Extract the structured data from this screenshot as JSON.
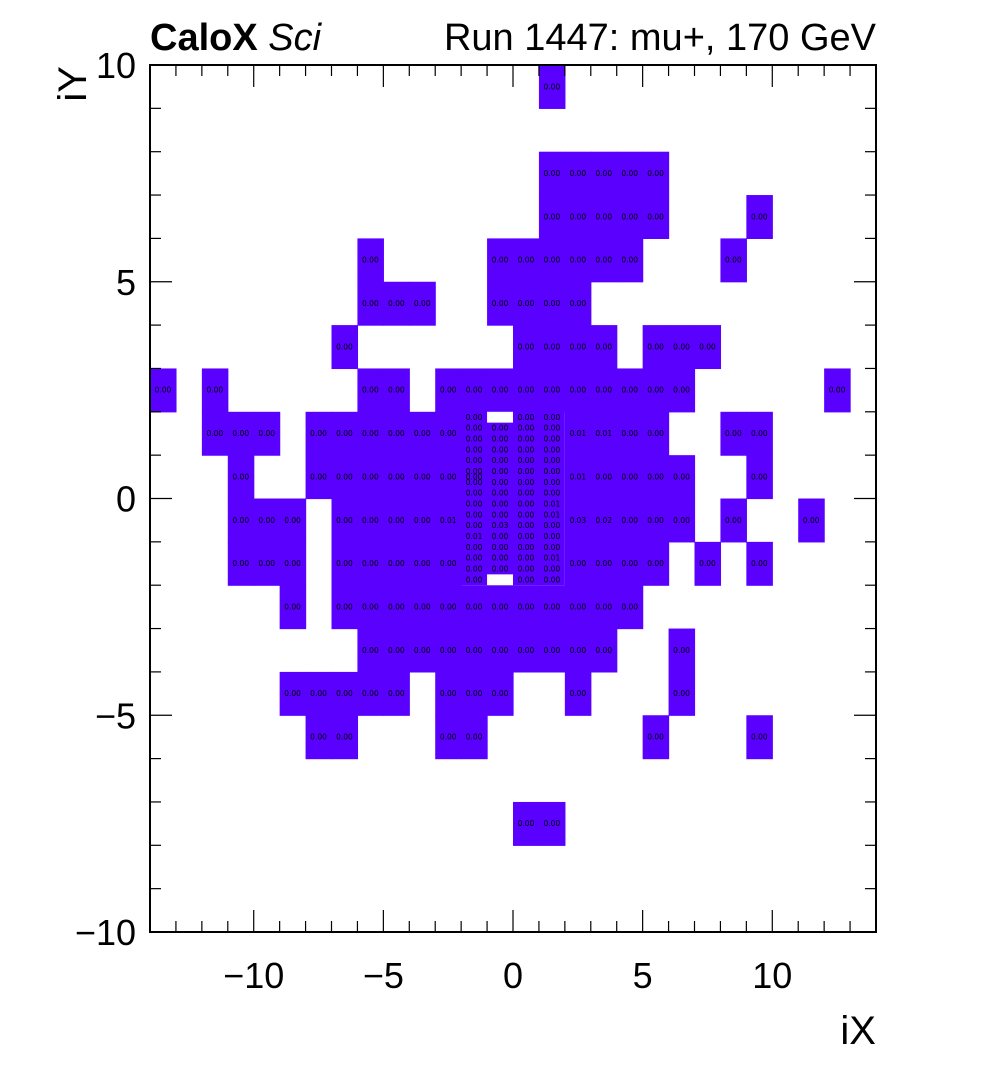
{
  "chart_data": {
    "type": "heatmap",
    "title_left_bold": "CaloX",
    "title_left_italic": "Sci",
    "title_right": "Run 1447: mu+, 170 GeV",
    "xlabel": "iX",
    "ylabel": "iY",
    "xlim": [
      -14,
      14
    ],
    "ylim": [
      -10,
      10
    ],
    "x_ticks": [
      -10,
      -5,
      0,
      5,
      10
    ],
    "x_tick_labels": [
      "−10",
      "−5",
      "0",
      "5",
      "10"
    ],
    "y_ticks": [
      -10,
      -5,
      0,
      5,
      10
    ],
    "y_tick_labels": [
      "−10",
      "−5",
      "0",
      "5",
      "10"
    ],
    "cell_color": "#5a00ff",
    "coarse_cells": [
      {
        "ix": 1,
        "iy": 9,
        "label": "0.00"
      },
      {
        "ix": 1,
        "iy": 7,
        "label": "0.00"
      },
      {
        "ix": 2,
        "iy": 7,
        "label": "0.00"
      },
      {
        "ix": 3,
        "iy": 7,
        "label": "0.00"
      },
      {
        "ix": 4,
        "iy": 7,
        "label": "0.00"
      },
      {
        "ix": 5,
        "iy": 7,
        "label": "0.00"
      },
      {
        "ix": 1,
        "iy": 6,
        "label": "0.00"
      },
      {
        "ix": 2,
        "iy": 6,
        "label": "0.00"
      },
      {
        "ix": 3,
        "iy": 6,
        "label": "0.00"
      },
      {
        "ix": 4,
        "iy": 6,
        "label": "0.00"
      },
      {
        "ix": 5,
        "iy": 6,
        "label": "0.00"
      },
      {
        "ix": 9,
        "iy": 6,
        "label": "0.00"
      },
      {
        "ix": -6,
        "iy": 5,
        "label": "0.00"
      },
      {
        "ix": -1,
        "iy": 5,
        "label": "0.00"
      },
      {
        "ix": 0,
        "iy": 5,
        "label": "0.00"
      },
      {
        "ix": 1,
        "iy": 5,
        "label": "0.00"
      },
      {
        "ix": 2,
        "iy": 5,
        "label": "0.00"
      },
      {
        "ix": 3,
        "iy": 5,
        "label": "0.00"
      },
      {
        "ix": 4,
        "iy": 5,
        "label": "0.00"
      },
      {
        "ix": 8,
        "iy": 5,
        "label": "0.00"
      },
      {
        "ix": -6,
        "iy": 4,
        "label": "0.00"
      },
      {
        "ix": -5,
        "iy": 4,
        "label": "0.00"
      },
      {
        "ix": -4,
        "iy": 4,
        "label": "0.00"
      },
      {
        "ix": -1,
        "iy": 4,
        "label": "0.00"
      },
      {
        "ix": 0,
        "iy": 4,
        "label": "0.00"
      },
      {
        "ix": 1,
        "iy": 4,
        "label": "0.00"
      },
      {
        "ix": 2,
        "iy": 4,
        "label": "0.00"
      },
      {
        "ix": -7,
        "iy": 3,
        "label": "0.00"
      },
      {
        "ix": 0,
        "iy": 3,
        "label": "0.00"
      },
      {
        "ix": 1,
        "iy": 3,
        "label": "0.00"
      },
      {
        "ix": 2,
        "iy": 3,
        "label": "0.00"
      },
      {
        "ix": 3,
        "iy": 3,
        "label": "0.00"
      },
      {
        "ix": 5,
        "iy": 3,
        "label": "0.00"
      },
      {
        "ix": 6,
        "iy": 3,
        "label": "0.00"
      },
      {
        "ix": 7,
        "iy": 3,
        "label": "0.00"
      },
      {
        "ix": -14,
        "iy": 2,
        "label": "0.00"
      },
      {
        "ix": -12,
        "iy": 2,
        "label": "0.00"
      },
      {
        "ix": -6,
        "iy": 2,
        "label": "0.00"
      },
      {
        "ix": -5,
        "iy": 2,
        "label": "0.00"
      },
      {
        "ix": -3,
        "iy": 2,
        "label": "0.00"
      },
      {
        "ix": -2,
        "iy": 2,
        "label": "0.00"
      },
      {
        "ix": -1,
        "iy": 2,
        "label": "0.00"
      },
      {
        "ix": 0,
        "iy": 2,
        "label": "0.00"
      },
      {
        "ix": 1,
        "iy": 2,
        "label": "0.00"
      },
      {
        "ix": 2,
        "iy": 2,
        "label": "0.00"
      },
      {
        "ix": 3,
        "iy": 2,
        "label": "0.00"
      },
      {
        "ix": 4,
        "iy": 2,
        "label": "0.00"
      },
      {
        "ix": 5,
        "iy": 2,
        "label": "0.00"
      },
      {
        "ix": 6,
        "iy": 2,
        "label": "0.00"
      },
      {
        "ix": 12,
        "iy": 2,
        "label": "0.00"
      },
      {
        "ix": -12,
        "iy": 1,
        "label": "0.00"
      },
      {
        "ix": -11,
        "iy": 1,
        "label": "0.00"
      },
      {
        "ix": -10,
        "iy": 1,
        "label": "0.00"
      },
      {
        "ix": -8,
        "iy": 1,
        "label": "0.00"
      },
      {
        "ix": -7,
        "iy": 1,
        "label": "0.00"
      },
      {
        "ix": -6,
        "iy": 1,
        "label": "0.00"
      },
      {
        "ix": -5,
        "iy": 1,
        "label": "0.00"
      },
      {
        "ix": -4,
        "iy": 1,
        "label": "0.00"
      },
      {
        "ix": -3,
        "iy": 1,
        "label": "0.00"
      },
      {
        "ix": 2,
        "iy": 1,
        "label": "0.01"
      },
      {
        "ix": 3,
        "iy": 1,
        "label": "0.01"
      },
      {
        "ix": 4,
        "iy": 1,
        "label": "0.00"
      },
      {
        "ix": 5,
        "iy": 1,
        "label": "0.00"
      },
      {
        "ix": 8,
        "iy": 1,
        "label": "0.00"
      },
      {
        "ix": 9,
        "iy": 1,
        "label": "0.00"
      },
      {
        "ix": -11,
        "iy": 0,
        "label": "0.00"
      },
      {
        "ix": -8,
        "iy": 0,
        "label": "0.00"
      },
      {
        "ix": -7,
        "iy": 0,
        "label": "0.00"
      },
      {
        "ix": -6,
        "iy": 0,
        "label": "0.00"
      },
      {
        "ix": -5,
        "iy": 0,
        "label": "0.00"
      },
      {
        "ix": -4,
        "iy": 0,
        "label": "0.00"
      },
      {
        "ix": -3,
        "iy": 0,
        "label": "0.00"
      },
      {
        "ix": -2,
        "iy": 0,
        "label": "0.00"
      },
      {
        "ix": 2,
        "iy": 0,
        "label": "0.01"
      },
      {
        "ix": 3,
        "iy": 0,
        "label": "0.00"
      },
      {
        "ix": 4,
        "iy": 0,
        "label": "0.00"
      },
      {
        "ix": 5,
        "iy": 0,
        "label": "0.00"
      },
      {
        "ix": 6,
        "iy": 0,
        "label": "0.00"
      },
      {
        "ix": 9,
        "iy": 0,
        "label": "0.00"
      },
      {
        "ix": -11,
        "iy": -1,
        "label": "0.00"
      },
      {
        "ix": -10,
        "iy": -1,
        "label": "0.00"
      },
      {
        "ix": -9,
        "iy": -1,
        "label": "0.00"
      },
      {
        "ix": -7,
        "iy": -1,
        "label": "0.00"
      },
      {
        "ix": -6,
        "iy": -1,
        "label": "0.00"
      },
      {
        "ix": -5,
        "iy": -1,
        "label": "0.00"
      },
      {
        "ix": -4,
        "iy": -1,
        "label": "0.00"
      },
      {
        "ix": -3,
        "iy": -1,
        "label": "0.01"
      },
      {
        "ix": 2,
        "iy": -1,
        "label": "0.03"
      },
      {
        "ix": 3,
        "iy": -1,
        "label": "0.02"
      },
      {
        "ix": 4,
        "iy": -1,
        "label": "0.00"
      },
      {
        "ix": 5,
        "iy": -1,
        "label": "0.00"
      },
      {
        "ix": 6,
        "iy": -1,
        "label": "0.00"
      },
      {
        "ix": 8,
        "iy": -1,
        "label": "0.00"
      },
      {
        "ix": 11,
        "iy": -1,
        "label": "0.00"
      },
      {
        "ix": -11,
        "iy": -2,
        "label": "0.00"
      },
      {
        "ix": -10,
        "iy": -2,
        "label": "0.00"
      },
      {
        "ix": -9,
        "iy": -2,
        "label": "0.00"
      },
      {
        "ix": -7,
        "iy": -2,
        "label": "0.00"
      },
      {
        "ix": -6,
        "iy": -2,
        "label": "0.00"
      },
      {
        "ix": -5,
        "iy": -2,
        "label": "0.00"
      },
      {
        "ix": -4,
        "iy": -2,
        "label": "0.00"
      },
      {
        "ix": -3,
        "iy": -2,
        "label": "0.00"
      },
      {
        "ix": 2,
        "iy": -2,
        "label": "0.00"
      },
      {
        "ix": 3,
        "iy": -2,
        "label": "0.00"
      },
      {
        "ix": 4,
        "iy": -2,
        "label": "0.00"
      },
      {
        "ix": 5,
        "iy": -2,
        "label": "0.00"
      },
      {
        "ix": 7,
        "iy": -2,
        "label": "0.00"
      },
      {
        "ix": 9,
        "iy": -2,
        "label": "0.00"
      },
      {
        "ix": -9,
        "iy": -3,
        "label": "0.00"
      },
      {
        "ix": -7,
        "iy": -3,
        "label": "0.00"
      },
      {
        "ix": -6,
        "iy": -3,
        "label": "0.00"
      },
      {
        "ix": -5,
        "iy": -3,
        "label": "0.00"
      },
      {
        "ix": -4,
        "iy": -3,
        "label": "0.00"
      },
      {
        "ix": -3,
        "iy": -3,
        "label": "0.00"
      },
      {
        "ix": -2,
        "iy": -3,
        "label": "0.00"
      },
      {
        "ix": -1,
        "iy": -3,
        "label": "0.00"
      },
      {
        "ix": 0,
        "iy": -3,
        "label": "0.00"
      },
      {
        "ix": 1,
        "iy": -3,
        "label": "0.00"
      },
      {
        "ix": 2,
        "iy": -3,
        "label": "0.00"
      },
      {
        "ix": 3,
        "iy": -3,
        "label": "0.00"
      },
      {
        "ix": 4,
        "iy": -3,
        "label": "0.00"
      },
      {
        "ix": -6,
        "iy": -4,
        "label": "0.00"
      },
      {
        "ix": -5,
        "iy": -4,
        "label": "0.00"
      },
      {
        "ix": -4,
        "iy": -4,
        "label": "0.00"
      },
      {
        "ix": -3,
        "iy": -4,
        "label": "0.00"
      },
      {
        "ix": -2,
        "iy": -4,
        "label": "0.00"
      },
      {
        "ix": -1,
        "iy": -4,
        "label": "0.00"
      },
      {
        "ix": 0,
        "iy": -4,
        "label": "0.00"
      },
      {
        "ix": 1,
        "iy": -4,
        "label": "0.00"
      },
      {
        "ix": 2,
        "iy": -4,
        "label": "0.00"
      },
      {
        "ix": 3,
        "iy": -4,
        "label": "0.00"
      },
      {
        "ix": 6,
        "iy": -4,
        "label": "0.00"
      },
      {
        "ix": -9,
        "iy": -5,
        "label": "0.00"
      },
      {
        "ix": -8,
        "iy": -5,
        "label": "0.00"
      },
      {
        "ix": -7,
        "iy": -5,
        "label": "0.00"
      },
      {
        "ix": -6,
        "iy": -5,
        "label": "0.00"
      },
      {
        "ix": -5,
        "iy": -5,
        "label": "0.00"
      },
      {
        "ix": -3,
        "iy": -5,
        "label": "0.00"
      },
      {
        "ix": -2,
        "iy": -5,
        "label": "0.00"
      },
      {
        "ix": -1,
        "iy": -5,
        "label": "0.00"
      },
      {
        "ix": 2,
        "iy": -5,
        "label": "0.00"
      },
      {
        "ix": 6,
        "iy": -5,
        "label": "0.00"
      },
      {
        "ix": -8,
        "iy": -6,
        "label": "0.00"
      },
      {
        "ix": -7,
        "iy": -6,
        "label": "0.00"
      },
      {
        "ix": -3,
        "iy": -6,
        "label": "0.00"
      },
      {
        "ix": -2,
        "iy": -6,
        "label": "0.00"
      },
      {
        "ix": 5,
        "iy": -6,
        "label": "0.00"
      },
      {
        "ix": 9,
        "iy": -6,
        "label": "0.00"
      },
      {
        "ix": 0,
        "iy": -8,
        "label": "0.00"
      },
      {
        "ix": 1,
        "iy": -8,
        "label": "0.00"
      }
    ],
    "fine_region": {
      "x_range": [
        -2,
        2
      ],
      "y_range": [
        -2,
        2
      ],
      "cell_size": 0.25,
      "column_x_centers": [
        -1.5,
        -0.5,
        0.5,
        1.5
      ],
      "row_labels": [
        [
          "0.00",
          "",
          "0.00",
          "0.00"
        ],
        [
          "0.00",
          "0.00",
          "0.00",
          "0.00"
        ],
        [
          "0.00",
          "0.00",
          "0.00",
          "0.00"
        ],
        [
          "0.00",
          "0.00",
          "0.00",
          "0.00"
        ],
        [
          "0.00",
          "0.00",
          "0.00",
          "0.00"
        ],
        [
          "0.00",
          "0.00",
          "0.00",
          "0.00"
        ],
        [
          "0.00",
          "0.00",
          "0.00",
          "0.00"
        ],
        [
          "0.00",
          "0.00",
          "0.00",
          "0.00"
        ],
        [
          "0.00",
          "0.00",
          "0.00",
          "0.01"
        ],
        [
          "0.00",
          "0.00",
          "0.00",
          "0.01"
        ],
        [
          "0.00",
          "0.03",
          "0.00",
          "0.00"
        ],
        [
          "0.01",
          "0.00",
          "0.00",
          "0.00"
        ],
        [
          "0.00",
          "0.00",
          "0.00",
          "0.00"
        ],
        [
          "0.00",
          "0.00",
          "0.00",
          "0.01"
        ],
        [
          "0.00",
          "0.00",
          "0.00",
          "0.00"
        ],
        [
          "0.00",
          "",
          "0.00",
          "0.00"
        ]
      ],
      "empty_cells": [
        {
          "x": [
            -1,
            0
          ],
          "y": [
            1.75,
            2
          ]
        },
        {
          "x": [
            -1,
            0
          ],
          "y": [
            -2,
            -1.75
          ]
        }
      ]
    }
  }
}
